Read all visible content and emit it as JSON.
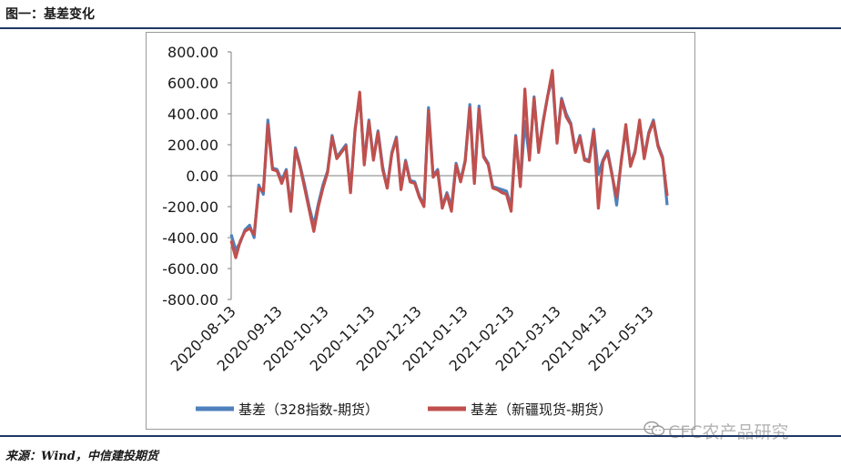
{
  "header": {
    "title": "图一：基差变化"
  },
  "footer": {
    "source": "来源：Wind，中信建投期货"
  },
  "watermark": {
    "text": "CFC农产品研究"
  },
  "colors": {
    "series1": "#4f81bd",
    "series2": "#c0504d",
    "rule": "#1f3864"
  },
  "chart_data": {
    "type": "line",
    "title": "",
    "xlabel": "",
    "ylabel": "",
    "ylim": [
      -800,
      800
    ],
    "yticks": [
      "800.00",
      "600.00",
      "400.00",
      "200.00",
      "0.00",
      "-200.00",
      "-400.00",
      "-600.00",
      "-800.00"
    ],
    "ytick_values": [
      800,
      600,
      400,
      200,
      0,
      -200,
      -400,
      -600,
      -800
    ],
    "xticks": [
      "2020-08-13",
      "2020-09-13",
      "2020-10-13",
      "2020-11-13",
      "2020-12-13",
      "2021-01-13",
      "2021-02-13",
      "2021-03-13",
      "2021-04-13",
      "2021-05-13"
    ],
    "x_range": [
      0,
      285
    ],
    "legend_position": "bottom",
    "series": [
      {
        "name": "基差（328指数-期货）",
        "x": [
          0,
          3,
          6,
          9,
          12,
          15,
          18,
          21,
          24,
          27,
          30,
          33,
          36,
          39,
          42,
          45,
          48,
          51,
          54,
          57,
          60,
          63,
          66,
          69,
          72,
          75,
          78,
          81,
          84,
          87,
          90,
          93,
          96,
          99,
          102,
          105,
          108,
          111,
          114,
          117,
          120,
          123,
          126,
          129,
          132,
          135,
          138,
          141,
          144,
          147,
          150,
          153,
          156,
          159,
          162,
          165,
          168,
          171,
          174,
          177,
          180,
          183,
          186,
          189,
          192,
          195,
          198,
          201,
          204,
          207,
          210,
          213,
          216,
          219,
          222,
          225,
          228,
          231,
          234,
          237,
          240,
          243,
          246,
          249,
          252,
          255,
          258,
          261,
          264,
          267,
          270,
          273,
          276,
          279,
          282,
          285
        ],
        "values": [
          -380,
          -480,
          -430,
          -350,
          -320,
          -400,
          -60,
          -120,
          360,
          50,
          40,
          -30,
          40,
          -210,
          180,
          70,
          -60,
          -200,
          -320,
          -180,
          -60,
          30,
          260,
          120,
          160,
          200,
          -100,
          300,
          520,
          90,
          360,
          110,
          290,
          60,
          -80,
          150,
          250,
          -80,
          100,
          -30,
          -40,
          -130,
          -190,
          440,
          0,
          40,
          -200,
          -110,
          -200,
          80,
          -30,
          100,
          460,
          -40,
          450,
          130,
          80,
          -70,
          -80,
          -90,
          -100,
          -200,
          260,
          -60,
          350,
          110,
          510,
          160,
          360,
          520,
          630,
          230,
          500,
          400,
          340,
          160,
          260,
          110,
          100,
          300,
          10,
          100,
          160,
          10,
          -190,
          100,
          300,
          70,
          160,
          340,
          120,
          280,
          360,
          200,
          120,
          -190
        ],
        "color": "#4f81bd"
      },
      {
        "name": "基差（新疆现货-期货）",
        "x": [
          0,
          3,
          6,
          9,
          12,
          15,
          18,
          21,
          24,
          27,
          30,
          33,
          36,
          39,
          42,
          45,
          48,
          51,
          54,
          57,
          60,
          63,
          66,
          69,
          72,
          75,
          78,
          81,
          84,
          87,
          90,
          93,
          96,
          99,
          102,
          105,
          108,
          111,
          114,
          117,
          120,
          123,
          126,
          129,
          132,
          135,
          138,
          141,
          144,
          147,
          150,
          153,
          156,
          159,
          162,
          165,
          168,
          171,
          174,
          177,
          180,
          183,
          186,
          189,
          192,
          195,
          198,
          201,
          204,
          207,
          210,
          213,
          216,
          219,
          222,
          225,
          228,
          231,
          234,
          237,
          240,
          243,
          246,
          249,
          252,
          255,
          258,
          261,
          264,
          267,
          270,
          273,
          276,
          279,
          282,
          285
        ],
        "values": [
          -420,
          -530,
          -420,
          -360,
          -340,
          -380,
          -80,
          -100,
          330,
          40,
          30,
          -50,
          30,
          -230,
          170,
          60,
          -80,
          -220,
          -360,
          -200,
          -80,
          20,
          250,
          110,
          150,
          190,
          -110,
          290,
          540,
          70,
          350,
          100,
          280,
          40,
          -80,
          140,
          240,
          -90,
          90,
          -40,
          -50,
          -140,
          -200,
          420,
          -10,
          30,
          -210,
          -120,
          -230,
          70,
          -40,
          90,
          440,
          -50,
          430,
          120,
          70,
          -80,
          -90,
          -110,
          -120,
          -230,
          250,
          -70,
          560,
          100,
          500,
          150,
          350,
          520,
          680,
          210,
          490,
          380,
          330,
          150,
          250,
          100,
          90,
          290,
          -210,
          90,
          150,
          0,
          -140,
          90,
          330,
          60,
          150,
          360,
          110,
          270,
          350,
          190,
          110,
          -130
        ],
        "color": "#c0504d"
      }
    ]
  }
}
